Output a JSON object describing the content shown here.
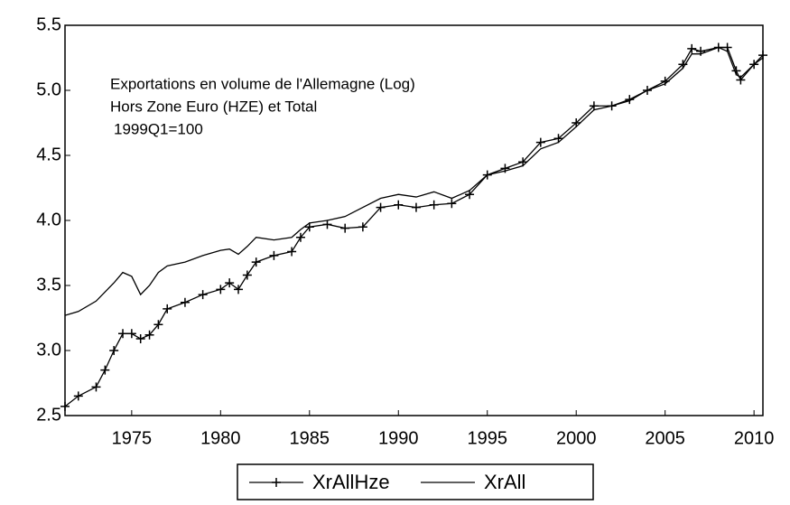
{
  "chart_data": {
    "type": "line",
    "annotations": [
      "Exportations en volume de l'Allemagne (Log)",
      "Hors  Zone  Euro (HZE) et Total",
      "1999Q1=100"
    ],
    "x": [
      1971.25,
      1972,
      1973,
      1973.5,
      1974,
      1974.5,
      1975,
      1975.5,
      1976,
      1976.5,
      1977,
      1978,
      1979,
      1980,
      1980.5,
      1981,
      1981.5,
      1982,
      1983,
      1984,
      1984.5,
      1985,
      1986,
      1987,
      1988,
      1989,
      1990,
      1991,
      1992,
      1993,
      1994,
      1995,
      1996,
      1997,
      1998,
      1999,
      2000,
      2001,
      2002,
      2003,
      2004,
      2005,
      2006,
      2006.5,
      2007,
      2008,
      2008.5,
      2009,
      2009.25,
      2010,
      2010.5
    ],
    "series": [
      {
        "name": "XrAllHze",
        "color": "#000000",
        "marker": "+",
        "values": [
          2.57,
          2.65,
          2.72,
          2.85,
          3.0,
          3.13,
          3.13,
          3.09,
          3.12,
          3.2,
          3.32,
          3.37,
          3.43,
          3.47,
          3.52,
          3.47,
          3.58,
          3.68,
          3.73,
          3.76,
          3.87,
          3.95,
          3.97,
          3.94,
          3.95,
          4.1,
          4.12,
          4.1,
          4.12,
          4.13,
          4.2,
          4.35,
          4.4,
          4.45,
          4.6,
          4.63,
          4.75,
          4.88,
          4.88,
          4.93,
          5.0,
          5.07,
          5.2,
          5.32,
          5.3,
          5.33,
          5.33,
          5.15,
          5.08,
          5.2,
          5.27
        ]
      },
      {
        "name": "XrAll",
        "color": "#000000",
        "values": [
          3.27,
          3.3,
          3.38,
          3.45,
          3.52,
          3.6,
          3.57,
          3.43,
          3.5,
          3.6,
          3.65,
          3.68,
          3.73,
          3.77,
          3.78,
          3.74,
          3.8,
          3.87,
          3.85,
          3.87,
          3.93,
          3.98,
          4.0,
          4.03,
          4.1,
          4.17,
          4.2,
          4.18,
          4.22,
          4.17,
          4.23,
          4.35,
          4.38,
          4.42,
          4.55,
          4.6,
          4.72,
          4.85,
          4.88,
          4.92,
          5.0,
          5.05,
          5.17,
          5.28,
          5.28,
          5.33,
          5.3,
          5.12,
          5.1,
          5.2,
          5.25
        ]
      }
    ],
    "xlim": [
      1971.25,
      2010.5
    ],
    "xticks": [
      1975,
      1980,
      1985,
      1990,
      1995,
      2000,
      2005,
      2010
    ],
    "ylim": [
      2.5,
      5.5
    ],
    "yticks": [
      2.5,
      {
        "value": 3,
        "label": "3.0"
      },
      3.5,
      {
        "value": 4,
        "label": "4.0"
      },
      4.5,
      {
        "value": 5,
        "label": "5.0"
      },
      5.5
    ],
    "grid": false,
    "legend": "bottom"
  }
}
